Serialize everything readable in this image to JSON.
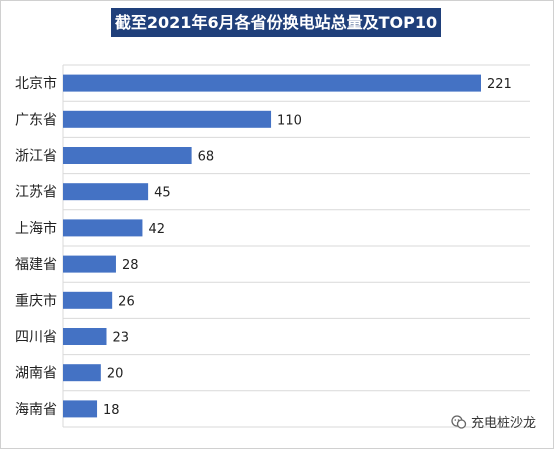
{
  "title": "截至2021年6月各省份换电站总量及TOP10",
  "watermark": "充电桩沙龙",
  "colors": {
    "bar": "#4472c4",
    "title_bg": "#1f3f7a",
    "grid": "#d9d9d9"
  },
  "chart_data": {
    "type": "bar",
    "orientation": "horizontal",
    "title": "截至2021年6月各省份换电站总量及TOP10",
    "categories": [
      "北京市",
      "广东省",
      "浙江省",
      "江苏省",
      "上海市",
      "福建省",
      "重庆市",
      "四川省",
      "湖南省",
      "海南省"
    ],
    "values": [
      221,
      110,
      68,
      45,
      42,
      28,
      26,
      23,
      20,
      18
    ],
    "xlabel": "",
    "ylabel": "",
    "xlim": [
      0,
      230
    ],
    "grid": true,
    "data_labels": true
  }
}
